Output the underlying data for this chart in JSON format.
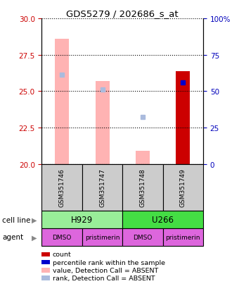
{
  "title": "GDS5279 / 202686_s_at",
  "samples": [
    "GSM351746",
    "GSM351747",
    "GSM351748",
    "GSM351749"
  ],
  "ylim_left": [
    20,
    30
  ],
  "ylim_right": [
    0,
    100
  ],
  "yticks_left": [
    20,
    22.5,
    25,
    27.5,
    30
  ],
  "yticks_right": [
    0,
    25,
    50,
    75,
    100
  ],
  "value_absent": [
    28.6,
    25.7,
    20.9,
    null
  ],
  "rank_absent_y": [
    26.15,
    25.1,
    23.25,
    null
  ],
  "value_present": [
    null,
    null,
    null,
    26.35
  ],
  "rank_present_y": [
    null,
    null,
    null,
    25.6
  ],
  "color_value_absent": "#ffb3b3",
  "color_rank_absent": "#aabbdd",
  "color_value_present": "#cc0000",
  "color_rank_present": "#0000cc",
  "bar_bottom": 20,
  "cell_line_labels": [
    "H929",
    "U266"
  ],
  "cell_line_spans": [
    [
      0,
      2
    ],
    [
      2,
      4
    ]
  ],
  "cell_line_colors": [
    "#99ee99",
    "#44dd44"
  ],
  "agent_labels": [
    "DMSO",
    "pristimerin",
    "DMSO",
    "pristimerin"
  ],
  "agent_color": "#dd66dd",
  "legend_items": [
    {
      "label": "count",
      "color": "#cc0000"
    },
    {
      "label": "percentile rank within the sample",
      "color": "#0000cc"
    },
    {
      "label": "value, Detection Call = ABSENT",
      "color": "#ffb3b3"
    },
    {
      "label": "rank, Detection Call = ABSENT",
      "color": "#aabbdd"
    }
  ],
  "left_label_color": "#cc0000",
  "right_label_color": "#0000bb",
  "bar_width": 0.35,
  "rank_marker_size": 5
}
